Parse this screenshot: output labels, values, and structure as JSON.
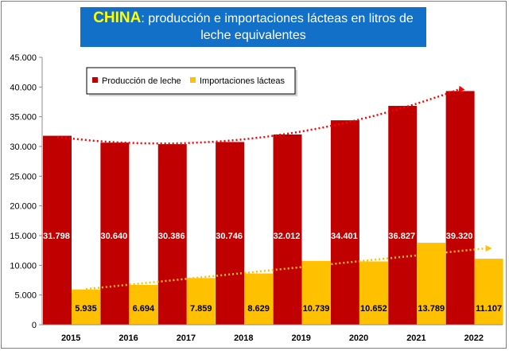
{
  "title": {
    "highlight": "CHINA",
    "rest": ": producción e importaciones lácteas en litros de leche equivalentes"
  },
  "colors": {
    "production": "#c00000",
    "imports": "#ffc000",
    "trend_production": "#ff0000",
    "trend_imports": "#ffc000",
    "title_bg": "#1270c9"
  },
  "chart_data": {
    "type": "bar",
    "categories": [
      "2015",
      "2016",
      "2017",
      "2018",
      "2019",
      "2020",
      "2021",
      "2022"
    ],
    "series": [
      {
        "name": "Producción de leche",
        "values": [
          31798,
          30640,
          30386,
          30746,
          32012,
          34401,
          36827,
          39320
        ],
        "labels": [
          "31.798",
          "30.640",
          "30.386",
          "30.746",
          "32.012",
          "34.401",
          "36.827",
          "39.320"
        ]
      },
      {
        "name": "Importaciones lácteas",
        "values": [
          5935,
          6694,
          7859,
          8629,
          10739,
          10652,
          13789,
          11107
        ],
        "labels": [
          "5.935",
          "6.694",
          "7.859",
          "8.629",
          "10.739",
          "10.652",
          "13.789",
          "11.107"
        ]
      }
    ],
    "ylim": [
      0,
      45000
    ],
    "yticks": [
      "0",
      "5.000",
      "10.000",
      "15.000",
      "20.000",
      "25.000",
      "30.000",
      "35.000",
      "40.000",
      "45.000"
    ],
    "trendlines": [
      "polynomial (production)",
      "linear (imports)"
    ],
    "legend_position": "top-left",
    "grid": false
  }
}
